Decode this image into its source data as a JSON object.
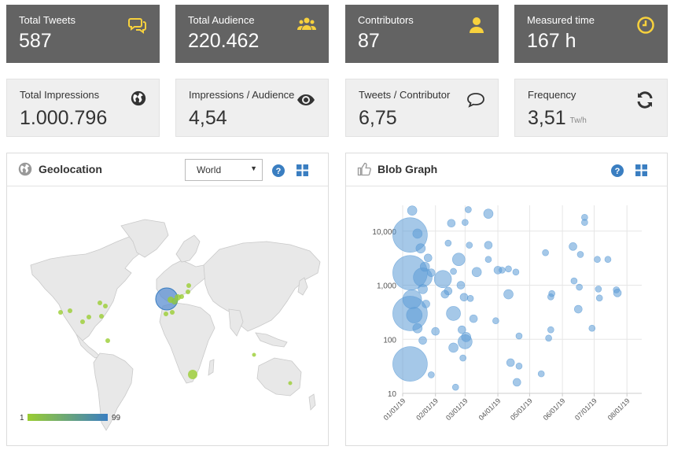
{
  "stats_top": [
    {
      "label": "Total Tweets",
      "value": "587",
      "icon": "speech-bubbles-icon"
    },
    {
      "label": "Total Audience",
      "value": "220.462",
      "icon": "users-icon"
    },
    {
      "label": "Contributors",
      "value": "87",
      "icon": "user-icon"
    },
    {
      "label": "Measured time",
      "value": "167 h",
      "icon": "clock-icon"
    }
  ],
  "stats_bottom": [
    {
      "label": "Total Impressions",
      "value": "1.000.796",
      "icon": "globe-icon"
    },
    {
      "label": "Impressions / Audience",
      "value": "4,54",
      "icon": "eye-icon"
    },
    {
      "label": "Tweets / Contributor",
      "value": "6,75",
      "icon": "speech-bubble-icon"
    },
    {
      "label": "Frequency",
      "value": "3,51",
      "unit": "Tw/h",
      "icon": "refresh-icon"
    }
  ],
  "colors": {
    "dark_card": "#636363",
    "light_card": "#efefef",
    "accent_yellow": "#f7d13d",
    "blue": "#3a7ec1",
    "bubble": "#5b9bd5",
    "legend_low": "#9acd32",
    "legend_high": "#3a7ec1"
  },
  "geolocation": {
    "title": "Geolocation",
    "select_value": "World",
    "legend_min": "1",
    "legend_max": "99"
  },
  "blob_graph": {
    "title": "Blob Graph"
  },
  "chart_data": {
    "type": "scatter",
    "y_scale": "log",
    "ylim": [
      10,
      30000
    ],
    "xlim": [
      "2019-01-01",
      "2019-08-15"
    ],
    "x_tick_labels": [
      "01/01/19",
      "02/01/19",
      "03/01/19",
      "04/01/19",
      "05/01/19",
      "06/01/19",
      "07/01/19",
      "08/01/19"
    ],
    "y_tick_labels": [
      "10",
      "100",
      "1,000",
      "10,000"
    ],
    "y_tick_values": [
      10,
      100,
      1000,
      10000
    ],
    "grid": true,
    "points": [
      {
        "x": "2019-01-08",
        "y": 8500,
        "r": 22
      },
      {
        "x": "2019-01-08",
        "y": 1700,
        "r": 22
      },
      {
        "x": "2019-01-08",
        "y": 300,
        "r": 22
      },
      {
        "x": "2019-01-08",
        "y": 35,
        "r": 22
      },
      {
        "x": "2019-01-10",
        "y": 550,
        "r": 12
      },
      {
        "x": "2019-01-12",
        "y": 280,
        "r": 10
      },
      {
        "x": "2019-01-20",
        "y": 1400,
        "r": 12
      },
      {
        "x": "2019-01-10",
        "y": 24000,
        "r": 6
      },
      {
        "x": "2019-01-15",
        "y": 9000,
        "r": 6
      },
      {
        "x": "2019-01-18",
        "y": 4800,
        "r": 6
      },
      {
        "x": "2019-01-22",
        "y": 2200,
        "r": 6
      },
      {
        "x": "2019-01-25",
        "y": 3200,
        "r": 5
      },
      {
        "x": "2019-01-28",
        "y": 1700,
        "r": 5
      },
      {
        "x": "2019-01-20",
        "y": 850,
        "r": 6
      },
      {
        "x": "2019-01-23",
        "y": 450,
        "r": 5
      },
      {
        "x": "2019-01-15",
        "y": 160,
        "r": 6
      },
      {
        "x": "2019-01-20",
        "y": 95,
        "r": 5
      },
      {
        "x": "2019-01-28",
        "y": 22,
        "r": 4
      },
      {
        "x": "2019-02-01",
        "y": 140,
        "r": 5
      },
      {
        "x": "2019-02-08",
        "y": 1300,
        "r": 11
      },
      {
        "x": "2019-02-10",
        "y": 680,
        "r": 5
      },
      {
        "x": "2019-02-13",
        "y": 780,
        "r": 5
      },
      {
        "x": "2019-02-13",
        "y": 6000,
        "r": 4
      },
      {
        "x": "2019-02-16",
        "y": 14000,
        "r": 5
      },
      {
        "x": "2019-02-18",
        "y": 300,
        "r": 9
      },
      {
        "x": "2019-02-18",
        "y": 1800,
        "r": 4
      },
      {
        "x": "2019-02-18",
        "y": 70,
        "r": 6
      },
      {
        "x": "2019-02-20",
        "y": 13,
        "r": 4
      },
      {
        "x": "2019-02-23",
        "y": 3000,
        "r": 8
      },
      {
        "x": "2019-02-25",
        "y": 1000,
        "r": 5
      },
      {
        "x": "2019-02-26",
        "y": 150,
        "r": 5
      },
      {
        "x": "2019-02-27",
        "y": 45,
        "r": 4
      },
      {
        "x": "2019-02-28",
        "y": 600,
        "r": 5
      },
      {
        "x": "2019-03-01",
        "y": 90,
        "r": 9
      },
      {
        "x": "2019-03-02",
        "y": 110,
        "r": 6
      },
      {
        "x": "2019-03-01",
        "y": 14500,
        "r": 4
      },
      {
        "x": "2019-03-04",
        "y": 25000,
        "r": 4
      },
      {
        "x": "2019-03-05",
        "y": 5500,
        "r": 4
      },
      {
        "x": "2019-03-06",
        "y": 570,
        "r": 4
      },
      {
        "x": "2019-03-09",
        "y": 240,
        "r": 5
      },
      {
        "x": "2019-03-12",
        "y": 1750,
        "r": 6
      },
      {
        "x": "2019-03-23",
        "y": 5500,
        "r": 5
      },
      {
        "x": "2019-03-23",
        "y": 3000,
        "r": 4
      },
      {
        "x": "2019-03-23",
        "y": 21000,
        "r": 6
      },
      {
        "x": "2019-03-30",
        "y": 220,
        "r": 4
      },
      {
        "x": "2019-04-01",
        "y": 1900,
        "r": 5
      },
      {
        "x": "2019-04-05",
        "y": 1900,
        "r": 4
      },
      {
        "x": "2019-04-11",
        "y": 2000,
        "r": 4
      },
      {
        "x": "2019-04-11",
        "y": 680,
        "r": 6
      },
      {
        "x": "2019-04-13",
        "y": 37,
        "r": 5
      },
      {
        "x": "2019-04-18",
        "y": 1750,
        "r": 4
      },
      {
        "x": "2019-04-21",
        "y": 115,
        "r": 4
      },
      {
        "x": "2019-04-21",
        "y": 32,
        "r": 4
      },
      {
        "x": "2019-04-19",
        "y": 16,
        "r": 5
      },
      {
        "x": "2019-05-12",
        "y": 23,
        "r": 4
      },
      {
        "x": "2019-05-16",
        "y": 4000,
        "r": 4
      },
      {
        "x": "2019-05-19",
        "y": 105,
        "r": 4
      },
      {
        "x": "2019-05-21",
        "y": 610,
        "r": 4
      },
      {
        "x": "2019-05-21",
        "y": 150,
        "r": 4
      },
      {
        "x": "2019-05-22",
        "y": 700,
        "r": 4
      },
      {
        "x": "2019-06-11",
        "y": 5200,
        "r": 5
      },
      {
        "x": "2019-06-12",
        "y": 1200,
        "r": 4
      },
      {
        "x": "2019-06-16",
        "y": 360,
        "r": 5
      },
      {
        "x": "2019-06-17",
        "y": 920,
        "r": 4
      },
      {
        "x": "2019-06-18",
        "y": 3700,
        "r": 4
      },
      {
        "x": "2019-06-22",
        "y": 14500,
        "r": 4
      },
      {
        "x": "2019-06-22",
        "y": 18000,
        "r": 4
      },
      {
        "x": "2019-06-29",
        "y": 160,
        "r": 4
      },
      {
        "x": "2019-07-04",
        "y": 3000,
        "r": 4
      },
      {
        "x": "2019-07-05",
        "y": 850,
        "r": 4
      },
      {
        "x": "2019-07-06",
        "y": 580,
        "r": 4
      },
      {
        "x": "2019-07-14",
        "y": 3000,
        "r": 4
      },
      {
        "x": "2019-07-22",
        "y": 820,
        "r": 4
      },
      {
        "x": "2019-07-23",
        "y": 720,
        "r": 5
      }
    ]
  }
}
